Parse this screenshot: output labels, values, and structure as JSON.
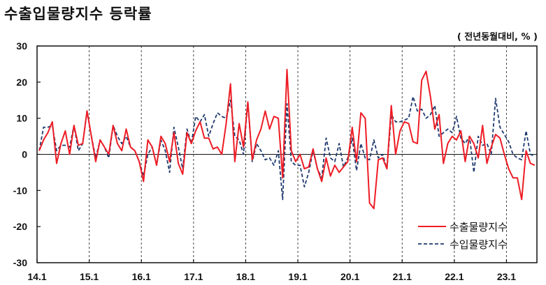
{
  "chart_data": {
    "type": "line",
    "title": "수출입물량지수 등락률",
    "unit_label": "( 전년동월대비, % )",
    "ylim": [
      -30,
      30
    ],
    "yticks": [
      -30,
      -20,
      -10,
      0,
      10,
      20,
      30
    ],
    "x_labels": [
      "14.1",
      "15.1",
      "16.1",
      "17.1",
      "18.1",
      "19.1",
      "20.1",
      "21.1",
      "22.1",
      "23.1"
    ],
    "grid": "vertical dashed lines at each January",
    "legend_position": "bottom-right",
    "colors": {
      "export": "#ee1c25",
      "import": "#1f3a6e"
    },
    "series": [
      {
        "name": "수출물량지수",
        "style": "solid",
        "values": [
          1,
          4,
          6,
          9,
          -2.5,
          3,
          6.5,
          0,
          8,
          2.5,
          3,
          12,
          5,
          -2,
          4,
          2,
          0,
          8,
          3,
          1,
          7,
          2,
          1,
          -2,
          -7.5,
          4,
          2,
          -3,
          5,
          3,
          -2,
          6,
          -2.5,
          -5.5,
          6,
          3,
          6.5,
          9,
          4.5,
          4.5,
          1.5,
          2,
          0,
          8.5,
          19.5,
          -2,
          8.5,
          2,
          14.5,
          -1.5,
          4,
          7,
          12,
          7,
          10.5,
          10,
          -6.5,
          23.5,
          1,
          -2,
          0,
          -4,
          -3.5,
          1.5,
          -4,
          -7.5,
          -1,
          -6,
          -3,
          -5,
          -3.5,
          -2,
          7.5,
          -2,
          11.5,
          10,
          -13.5,
          -15,
          -1.5,
          -1,
          -4,
          13.5,
          0,
          6.5,
          9,
          8.5,
          3.5,
          3,
          20.5,
          23,
          16,
          7,
          11,
          -2.5,
          3,
          5,
          4,
          6.5,
          -2,
          5,
          3,
          -1,
          8,
          -2.5,
          2,
          5.5,
          4.5,
          0,
          -4,
          -6.5,
          -6.5,
          -12.5,
          1,
          -2.5,
          -3
        ]
      },
      {
        "name": "수입물량지수",
        "style": "dashed",
        "values": [
          1,
          7.5,
          7.5,
          8,
          1,
          2.5,
          2.5,
          2,
          8,
          1,
          3,
          12,
          5,
          -1,
          4,
          2,
          -1,
          8,
          5,
          3,
          5,
          2,
          1,
          -2,
          -6,
          0,
          2,
          -3,
          4,
          1,
          -5,
          7.5,
          2,
          -4,
          7,
          3,
          10.5,
          9,
          11,
          5,
          8.5,
          11.5,
          10.5,
          10,
          15,
          5,
          4,
          0,
          14.5,
          -2,
          3,
          1,
          -1.5,
          -1,
          -3,
          1,
          -12.5,
          14,
          -2,
          -3,
          -3,
          -9,
          -5,
          1,
          -4,
          -6.5,
          4.5,
          -1,
          -2,
          3,
          -3.5,
          -1,
          4.5,
          -4.5,
          3,
          -1,
          -1.5,
          4,
          -1,
          0,
          -4,
          11,
          9,
          9,
          9.5,
          10,
          16,
          12,
          12.5,
          10,
          11,
          13.5,
          5,
          6,
          7,
          6,
          10.5,
          4.5,
          3,
          5,
          -5,
          5,
          2.5,
          3,
          0,
          15.5,
          7.5,
          5.5,
          3.5,
          0,
          -1,
          -1.5,
          6.5,
          0,
          -0.5
        ]
      }
    ]
  }
}
